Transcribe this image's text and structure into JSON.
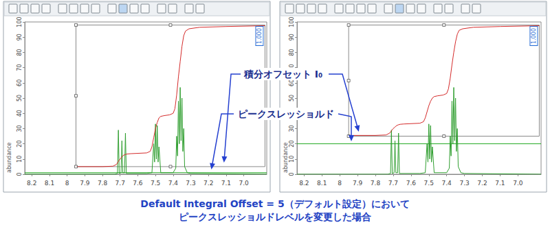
{
  "chart_data": [
    {
      "type": "line",
      "xlim": [
        8.24,
        6.87
      ],
      "xticks": [
        8.2,
        8.1,
        8.0,
        7.9,
        7.8,
        7.7,
        7.6,
        7.5,
        7.4,
        7.3,
        7.2,
        7.1,
        {
          "value": 7,
          "label": "7.0"
        }
      ],
      "ylim": [
        0,
        100
      ],
      "yticks": [
        0,
        10,
        20,
        30,
        40,
        50,
        60,
        70,
        80,
        90,
        100
      ],
      "ylabel": "abundance",
      "grid": false,
      "spectrum": {
        "color": "#2f9e2f",
        "x": [
          8.24,
          7.73,
          7.715,
          7.71,
          7.705,
          7.695,
          7.69,
          7.685,
          7.675,
          7.67,
          7.665,
          7.55,
          7.52,
          7.51,
          7.505,
          7.5,
          7.495,
          7.49,
          7.485,
          7.48,
          7.47,
          7.4,
          7.385,
          7.38,
          7.375,
          7.37,
          7.365,
          7.36,
          7.355,
          7.35,
          7.345,
          7.34,
          7.335,
          7.32,
          7.3,
          6.87
        ],
        "values": [
          0,
          0,
          0.5,
          29,
          0.5,
          1,
          22,
          1,
          1,
          27,
          0.5,
          0.5,
          1,
          20,
          8,
          33,
          10,
          32,
          8,
          18,
          1,
          1,
          4,
          25,
          12,
          48,
          20,
          57,
          22,
          50,
          15,
          30,
          5,
          1,
          0.5,
          0
        ]
      },
      "integral": {
        "color": "#d42a2a",
        "x": [
          7.95,
          7.8,
          7.74,
          7.72,
          7.71,
          7.7,
          7.69,
          7.68,
          7.67,
          7.66,
          7.64,
          7.55,
          7.53,
          7.52,
          7.51,
          7.5,
          7.49,
          7.48,
          7.47,
          7.45,
          7.42,
          7.4,
          7.39,
          7.38,
          7.37,
          7.36,
          7.35,
          7.34,
          7.33,
          7.31,
          7.25,
          7.1,
          6.88
        ],
        "values": [
          5,
          5,
          5.3,
          6.5,
          8.5,
          10,
          11.5,
          12.5,
          13,
          13.3,
          13.5,
          14,
          15,
          18,
          24,
          30,
          34,
          37,
          38,
          38.5,
          39,
          40,
          43,
          52,
          64,
          74,
          84,
          91,
          94,
          95.5,
          96.5,
          97,
          97.5
        ]
      },
      "integral_offset": 5,
      "peak_threshold": 1,
      "threshold_color": "#22a822",
      "integral_box": {
        "x": [
          7.95,
          6.88
        ],
        "y_top": 98
      },
      "integral_value_label": "1.000"
    },
    {
      "type": "line",
      "xlim": [
        8.24,
        6.87
      ],
      "xticks": [
        8.2,
        8.1,
        8.0,
        7.9,
        7.8,
        7.7,
        7.6,
        7.5,
        7.4,
        7.3,
        7.2,
        7.1,
        {
          "value": 7,
          "label": "7.0"
        }
      ],
      "ylim": [
        0,
        100
      ],
      "yticks": [
        0,
        10,
        20,
        30,
        40,
        50,
        60,
        70,
        80,
        90,
        100
      ],
      "ylabel": "abundance",
      "grid": false,
      "spectrum": {
        "color": "#2f9e2f",
        "x": [
          8.24,
          7.73,
          7.715,
          7.71,
          7.705,
          7.695,
          7.69,
          7.685,
          7.675,
          7.67,
          7.665,
          7.55,
          7.52,
          7.51,
          7.505,
          7.5,
          7.495,
          7.49,
          7.485,
          7.48,
          7.47,
          7.4,
          7.385,
          7.38,
          7.375,
          7.37,
          7.365,
          7.36,
          7.355,
          7.35,
          7.345,
          7.34,
          7.335,
          7.32,
          7.3,
          6.87
        ],
        "values": [
          0,
          0,
          0.5,
          29,
          0.5,
          1,
          22,
          1,
          1,
          27,
          0.5,
          0.5,
          1,
          20,
          8,
          33,
          10,
          32,
          8,
          18,
          1,
          1,
          4,
          25,
          12,
          48,
          20,
          57,
          22,
          50,
          15,
          30,
          5,
          1,
          0.5,
          0
        ]
      },
      "integral": {
        "color": "#d42a2a",
        "x": [
          7.95,
          7.8,
          7.74,
          7.72,
          7.71,
          7.7,
          7.69,
          7.68,
          7.67,
          7.66,
          7.64,
          7.55,
          7.53,
          7.52,
          7.51,
          7.5,
          7.49,
          7.48,
          7.47,
          7.45,
          7.42,
          7.4,
          7.39,
          7.38,
          7.37,
          7.36,
          7.35,
          7.34,
          7.33,
          7.31,
          7.25,
          7.1,
          6.88
        ],
        "values": [
          25.5,
          25.5,
          25.8,
          27,
          28.5,
          30,
          31,
          32,
          32.5,
          32.8,
          33,
          33.5,
          34.5,
          37,
          41,
          45,
          48,
          50,
          51,
          51.5,
          52,
          53,
          56,
          63,
          72,
          80,
          87,
          92,
          94.5,
          95.5,
          96.5,
          97,
          97.5
        ]
      },
      "integral_offset": 25,
      "peak_threshold": 20,
      "threshold_color": "#22a822",
      "integral_box": {
        "x": [
          7.95,
          6.88
        ],
        "y_top": 98
      },
      "integral_value_label": "1.000"
    }
  ],
  "annotations": {
    "integral_offset": "積分オフセット I₀",
    "peak_threshold": "ピークスレッショルド"
  },
  "caption": [
    "Default Integral Offset = 5（デフォルト設定）において",
    "ピークスレッショルドレベルを変更した場合"
  ]
}
